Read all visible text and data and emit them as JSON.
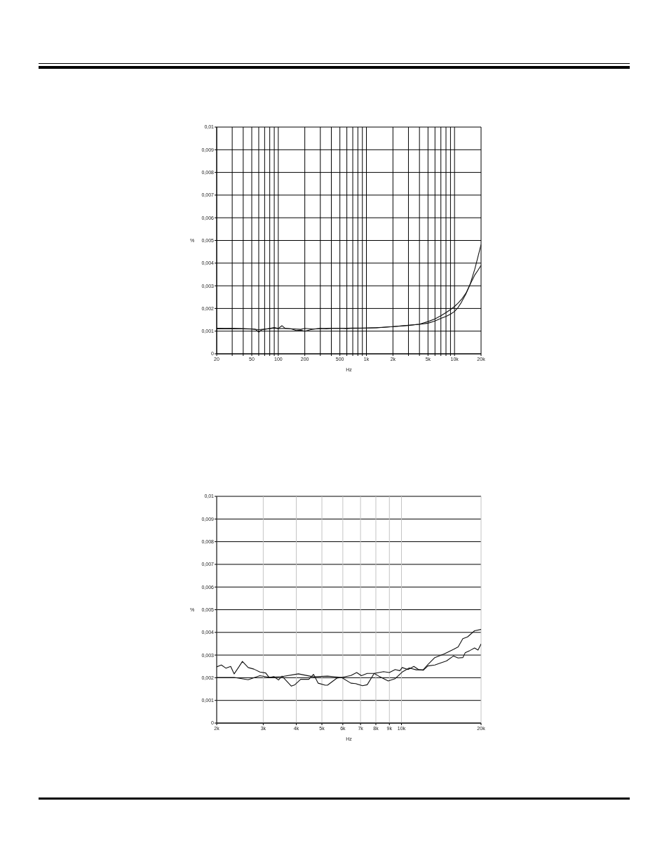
{
  "chart_data": [
    {
      "type": "line",
      "xlabel": "Hz",
      "ylabel": "%",
      "log": "x",
      "grid": true,
      "xlim": [
        20,
        20000
      ],
      "xticks": [
        20,
        {
          "value": 30,
          "label": null
        },
        {
          "value": 40,
          "label": null
        },
        50,
        {
          "value": 60,
          "label": null
        },
        {
          "value": 70,
          "label": null
        },
        {
          "value": 80,
          "label": null
        },
        {
          "value": 90,
          "label": null
        },
        100,
        200,
        {
          "value": 300,
          "label": null
        },
        {
          "value": 400,
          "label": null
        },
        500,
        {
          "value": 600,
          "label": null
        },
        {
          "value": 700,
          "label": null
        },
        {
          "value": 800,
          "label": null
        },
        {
          "value": 900,
          "label": null
        },
        {
          "value": 1000,
          "label": "1k"
        },
        {
          "value": 2000,
          "label": "2k"
        },
        {
          "value": 3000,
          "label": null
        },
        {
          "value": 4000,
          "label": null
        },
        {
          "value": 5000,
          "label": "5k"
        },
        {
          "value": 6000,
          "label": null
        },
        {
          "value": 7000,
          "label": null
        },
        {
          "value": 8000,
          "label": null
        },
        {
          "value": 9000,
          "label": null
        },
        {
          "value": 10000,
          "label": "10k"
        },
        {
          "value": 20000,
          "label": "20k"
        }
      ],
      "ylim": [
        0,
        0.01
      ],
      "yticks": [
        0,
        {
          "value": 0.001,
          "label": "0,001"
        },
        {
          "value": 0.002,
          "label": "0,002"
        },
        {
          "value": 0.003,
          "label": "0,003"
        },
        {
          "value": 0.004,
          "label": "0,004"
        },
        {
          "value": 0.005,
          "label": "0,005"
        },
        {
          "value": 0.006,
          "label": "0,006"
        },
        {
          "value": 0.007,
          "label": "0,007"
        },
        {
          "value": 0.008,
          "label": "0,008"
        },
        {
          "value": 0.009,
          "label": "0,009"
        },
        {
          "value": 0.01,
          "label": "0,01"
        }
      ],
      "series": [
        {
          "color": "#111111",
          "x": [
            20,
            25,
            30,
            40,
            50,
            55,
            60,
            65,
            75,
            80,
            90,
            100,
            110,
            120,
            140,
            160,
            180,
            200,
            230,
            260,
            300,
            350,
            400,
            500,
            600,
            700,
            800,
            1000,
            1300,
            1500,
            2000,
            3000,
            4000,
            5000,
            6000,
            7000,
            8000,
            9000,
            10000,
            11000,
            12000,
            13500,
            15000,
            17000,
            18500,
            20000
          ],
          "values": [
            0.00113,
            0.00112,
            0.00112,
            0.00111,
            0.0011,
            0.00108,
            0.00096,
            0.00106,
            0.0011,
            0.00112,
            0.00116,
            0.00112,
            0.00124,
            0.00112,
            0.0011,
            0.00103,
            0.00104,
            0.001,
            0.00106,
            0.0011,
            0.00112,
            0.0011,
            0.00112,
            0.00113,
            0.00111,
            0.00113,
            0.00112,
            0.00114,
            0.00115,
            0.00117,
            0.0012,
            0.00126,
            0.0013,
            0.00135,
            0.00145,
            0.00156,
            0.00165,
            0.00175,
            0.00187,
            0.00205,
            0.00228,
            0.00265,
            0.00306,
            0.00374,
            0.0043,
            0.00482
          ]
        },
        {
          "color": "#111111",
          "x": [
            20,
            30,
            40,
            50,
            60,
            70,
            80,
            90,
            100,
            120,
            150,
            180,
            200,
            250,
            300,
            400,
            500,
            700,
            1000,
            1500,
            2000,
            3000,
            4000,
            5000,
            6000,
            7000,
            8000,
            9000,
            10000,
            11000,
            12000,
            13500,
            15000,
            17000,
            18500,
            20000
          ],
          "values": [
            0.0011,
            0.00111,
            0.0011,
            0.00109,
            0.00107,
            0.00109,
            0.00111,
            0.00113,
            0.00111,
            0.00112,
            0.0011,
            0.00108,
            0.00112,
            0.00109,
            0.00111,
            0.00113,
            0.00112,
            0.00114,
            0.00114,
            0.00116,
            0.0012,
            0.00125,
            0.00131,
            0.00142,
            0.00154,
            0.00168,
            0.00182,
            0.00195,
            0.00209,
            0.00224,
            0.0024,
            0.00268,
            0.00306,
            0.00348,
            0.00369,
            0.0039
          ]
        }
      ]
    },
    {
      "type": "line",
      "xlabel": "Hz",
      "ylabel": "%",
      "log": "x",
      "grid": true,
      "xlim": [
        2000,
        20000
      ],
      "xticks": [
        {
          "value": 2000,
          "label": "2k"
        },
        {
          "value": 3000,
          "label": "3k"
        },
        {
          "value": 4000,
          "label": "4k"
        },
        {
          "value": 5000,
          "label": "5k"
        },
        {
          "value": 6000,
          "label": "6k"
        },
        {
          "value": 7000,
          "label": "7k"
        },
        {
          "value": 8000,
          "label": "8k"
        },
        {
          "value": 9000,
          "label": "9k"
        },
        {
          "value": 10000,
          "label": "10k"
        },
        {
          "value": 20000,
          "label": "20k"
        }
      ],
      "ylim": [
        0,
        0.01
      ],
      "yticks": [
        0,
        {
          "value": 0.001,
          "label": "0,001"
        },
        {
          "value": 0.002,
          "label": "0,002"
        },
        {
          "value": 0.003,
          "label": "0,003"
        },
        {
          "value": 0.004,
          "label": "0,004"
        },
        {
          "value": 0.005,
          "label": "0,005"
        },
        {
          "value": 0.006,
          "label": "0,006"
        },
        {
          "value": 0.007,
          "label": "0,007"
        },
        {
          "value": 0.008,
          "label": "0,008"
        },
        {
          "value": 0.009,
          "label": "0,009"
        },
        {
          "value": 0.01,
          "label": "0,01"
        }
      ],
      "series": [
        {
          "color": "#111111",
          "x": [
            2000,
            2083,
            2169,
            2259,
            2329,
            2427,
            2502,
            2631,
            2767,
            2913,
            3065,
            3160,
            3291,
            3427,
            3533,
            3832,
            3951,
            4157,
            4463,
            4648,
            4841,
            5145,
            5250,
            5697,
            5933,
            6435,
            6703,
            7124,
            7419,
            7884,
            8211,
            8906,
            9467,
            10063,
            10697,
            11365,
            12082,
            12586,
            13373,
            14503,
            15731,
            16380,
            17064,
            17777,
            18896,
            20000
          ],
          "values": [
            0.00248,
            0.00256,
            0.00242,
            0.0025,
            0.00217,
            0.00248,
            0.00272,
            0.00245,
            0.00238,
            0.00225,
            0.00221,
            0.00201,
            0.00205,
            0.0019,
            0.00207,
            0.00163,
            0.00169,
            0.00193,
            0.00193,
            0.00215,
            0.00176,
            0.00167,
            0.00167,
            0.00198,
            0.00201,
            0.00176,
            0.00174,
            0.00165,
            0.00169,
            0.00219,
            0.00207,
            0.00186,
            0.00196,
            0.00225,
            0.00243,
            0.00235,
            0.00235,
            0.00258,
            0.00289,
            0.00305,
            0.00325,
            0.00336,
            0.00372,
            0.0038,
            0.00407,
            0.00413
          ]
        },
        {
          "color": "#111111",
          "x": [
            2000,
            2329,
            2631,
            2913,
            3160,
            3533,
            4074,
            4648,
            5250,
            5933,
            6435,
            6771,
            7052,
            7419,
            7884,
            8553,
            8997,
            9467,
            9860,
            10063,
            10587,
            11138,
            11600,
            12082,
            12586,
            13373,
            14211,
            14801,
            15731,
            16380,
            17064,
            17417,
            18145,
            18896,
            19479,
            20000
          ],
          "values": [
            0.00201,
            0.00201,
            0.00191,
            0.00209,
            0.00202,
            0.00205,
            0.00217,
            0.00204,
            0.00207,
            0.00201,
            0.0021,
            0.00223,
            0.00209,
            0.00219,
            0.00219,
            0.00227,
            0.00223,
            0.00236,
            0.00231,
            0.00245,
            0.00236,
            0.0025,
            0.00236,
            0.00233,
            0.00252,
            0.00256,
            0.00267,
            0.00274,
            0.00296,
            0.00287,
            0.00289,
            0.0031,
            0.0032,
            0.00331,
            0.00322,
            0.00349
          ]
        }
      ]
    }
  ]
}
